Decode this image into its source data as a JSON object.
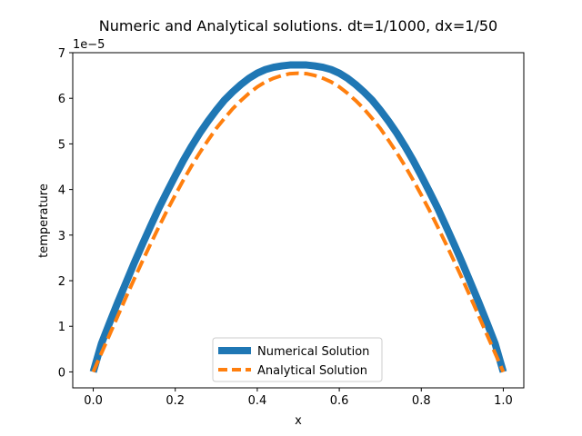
{
  "chart_data": {
    "type": "line",
    "title": "Numeric and Analytical solutions. dt=1/1000, dx=1/50",
    "xlabel": "x",
    "ylabel": "temperature",
    "y_offset_text": "1e−5",
    "xlim": [
      -0.05,
      1.05
    ],
    "ylim": [
      -0.35,
      7.0
    ],
    "x_ticks": [
      0.0,
      0.2,
      0.4,
      0.6,
      0.8,
      1.0
    ],
    "x_tick_labels": [
      "0.0",
      "0.2",
      "0.4",
      "0.6",
      "0.8",
      "1.0"
    ],
    "y_ticks": [
      0,
      1,
      2,
      3,
      4,
      5,
      6,
      7
    ],
    "y_tick_labels": [
      "0",
      "1",
      "2",
      "3",
      "4",
      "5",
      "6",
      "7"
    ],
    "grid": false,
    "legend_position": "lower center",
    "x": [
      0.0,
      0.02,
      0.04,
      0.06,
      0.08,
      0.1,
      0.12,
      0.14,
      0.16,
      0.18,
      0.2,
      0.22,
      0.24,
      0.26,
      0.28,
      0.3,
      0.32,
      0.34,
      0.36,
      0.38,
      0.4,
      0.42,
      0.44,
      0.46,
      0.48,
      0.5,
      0.52,
      0.54,
      0.56,
      0.58,
      0.6,
      0.62,
      0.64,
      0.66,
      0.68,
      0.7,
      0.72,
      0.74,
      0.76,
      0.78,
      0.8,
      0.82,
      0.84,
      0.86,
      0.88,
      0.9,
      0.92,
      0.94,
      0.96,
      0.98,
      1.0
    ],
    "series": [
      {
        "name": "Numerical Solution",
        "color": "#1f77b4",
        "style": "solid",
        "values": [
          0.0,
          0.62,
          1.08,
          1.53,
          1.96,
          2.39,
          2.8,
          3.2,
          3.59,
          3.95,
          4.3,
          4.64,
          4.95,
          5.24,
          5.5,
          5.74,
          5.96,
          6.14,
          6.3,
          6.44,
          6.55,
          6.63,
          6.68,
          6.71,
          6.73,
          6.73,
          6.73,
          6.71,
          6.68,
          6.63,
          6.55,
          6.44,
          6.3,
          6.14,
          5.96,
          5.74,
          5.5,
          5.24,
          4.95,
          4.64,
          4.3,
          3.95,
          3.59,
          3.2,
          2.8,
          2.39,
          1.96,
          1.53,
          1.08,
          0.62,
          0.0
        ]
      },
      {
        "name": "Analytical Solution",
        "color": "#ff7f0e",
        "style": "dashed",
        "values": [
          0.0,
          0.41,
          0.82,
          1.23,
          1.64,
          2.04,
          2.43,
          2.81,
          3.18,
          3.54,
          3.88,
          4.21,
          4.52,
          4.81,
          5.08,
          5.34,
          5.56,
          5.77,
          5.95,
          6.11,
          6.25,
          6.36,
          6.44,
          6.5,
          6.54,
          6.55,
          6.54,
          6.5,
          6.44,
          6.36,
          6.25,
          6.11,
          5.95,
          5.77,
          5.56,
          5.34,
          5.08,
          4.81,
          4.52,
          4.21,
          3.88,
          3.54,
          3.18,
          2.81,
          2.43,
          2.04,
          1.64,
          1.23,
          0.82,
          0.41,
          0.0
        ]
      }
    ]
  }
}
